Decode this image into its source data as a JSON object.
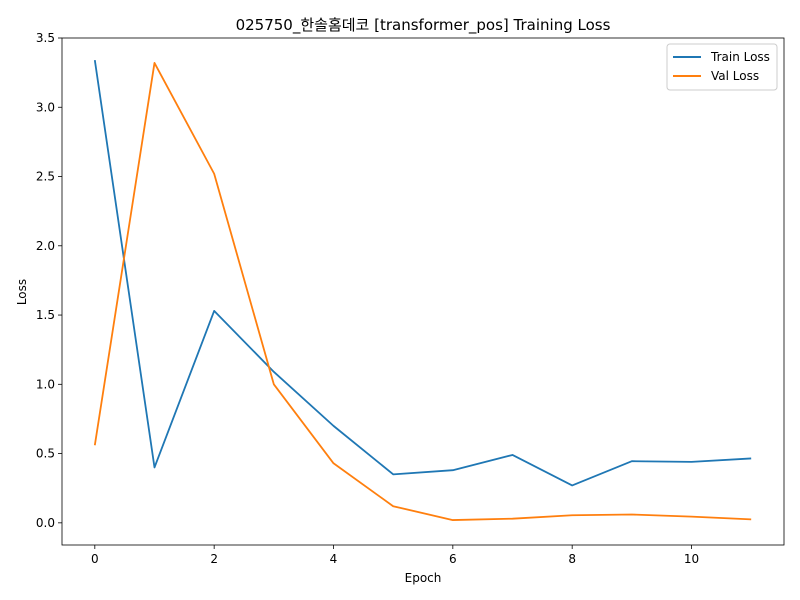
{
  "chart_data": {
    "type": "line",
    "title": "025750_한솔홈데코 [transformer_pos] Training Loss",
    "xlabel": "Epoch",
    "ylabel": "Loss",
    "x": [
      0,
      1,
      2,
      3,
      4,
      5,
      6,
      7,
      8,
      9,
      10,
      11
    ],
    "xlim": [
      -0.55,
      11.55
    ],
    "ylim": [
      -0.16,
      3.5
    ],
    "xticks": [
      0,
      2,
      4,
      6,
      8,
      10
    ],
    "yticks": [
      0.0,
      0.5,
      1.0,
      1.5,
      2.0,
      2.5,
      3.0,
      3.5
    ],
    "xtick_labels": [
      "0",
      "2",
      "4",
      "6",
      "8",
      "10"
    ],
    "ytick_labels": [
      "0.0",
      "0.5",
      "1.0",
      "1.5",
      "2.0",
      "2.5",
      "3.0",
      "3.5"
    ],
    "grid": false,
    "legend_position": "top-right",
    "series": [
      {
        "name": "Train Loss",
        "color": "#1f77b4",
        "values": [
          3.34,
          0.4,
          1.53,
          1.09,
          0.7,
          0.35,
          0.38,
          0.49,
          0.27,
          0.445,
          0.44,
          0.465
        ]
      },
      {
        "name": "Val Loss",
        "color": "#ff7f0e",
        "values": [
          0.56,
          3.32,
          2.52,
          1.0,
          0.43,
          0.12,
          0.02,
          0.03,
          0.055,
          0.06,
          0.045,
          0.025
        ]
      }
    ]
  }
}
